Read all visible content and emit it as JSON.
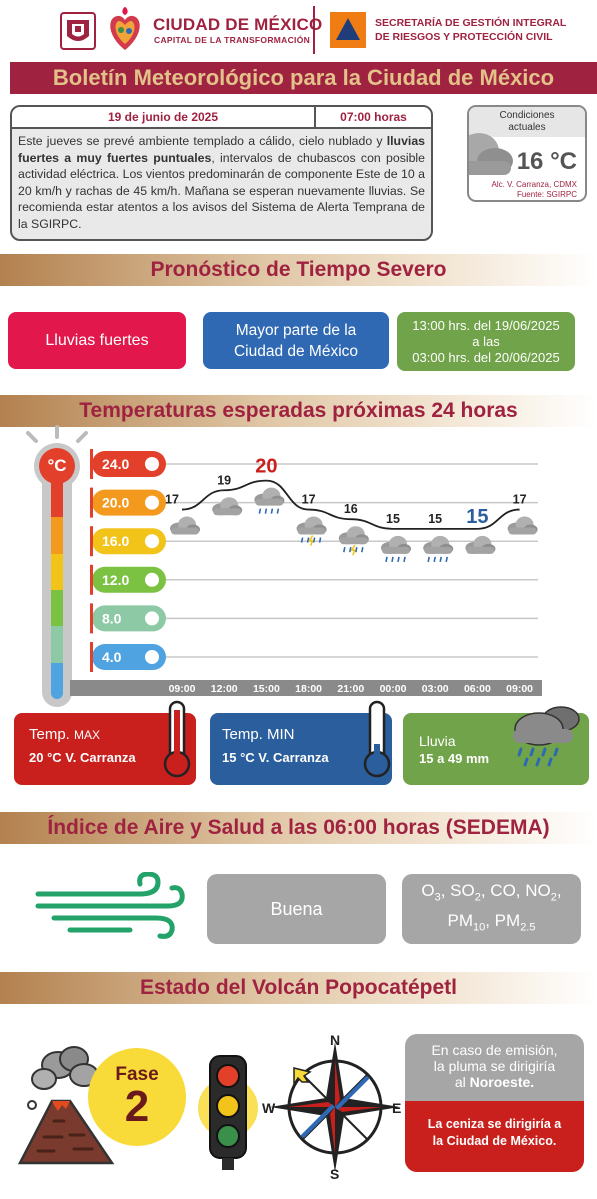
{
  "header": {
    "org_name": "CIUDAD DE MÉXICO",
    "org_sub": "CAPITAL DE LA TRANSFORMACIÓN",
    "secretariat_line1": "SECRETARÍA DE GESTIÓN INTEGRAL",
    "secretariat_line2": "DE RIESGOS Y PROTECCIÓN CIVIL"
  },
  "title": "Boletín Meteorológico para la Ciudad de México",
  "bulletin": {
    "date": "19 de junio de 2025",
    "time": "07:00 horas",
    "text_part1": "Este jueves se prevé ambiente templado a cálido, cielo nublado y ",
    "text_bold": "lluvias fuertes a muy fuertes puntuales",
    "text_part2": ", intervalos de chubascos con posible actividad eléctrica. Los vientos predominarán de componente Este de 10 a 20 km/h y rachas de 45 km/h. Mañana se esperan nuevamente lluvias. Se recomienda estar atentos a los avisos del Sistema de Alerta Temprana de la SGIRPC."
  },
  "current_conditions": {
    "label": "Condiciones actuales",
    "temperature": "16 °C",
    "location": "Alc. V. Carranza, CDMX",
    "source": "Fuente: SGIRPC",
    "icon": "cloud-icon"
  },
  "severe": {
    "title": "Pronóstico de Tiempo Severo",
    "phenomenon": "Lluvias fuertes",
    "area": "Mayor parte de la Ciudad de México",
    "period_line1": "13:00 hrs. del 19/06/2025",
    "period_line2": "a las",
    "period_line3": "03:00 hrs. del 20/06/2025",
    "colors": {
      "phenomenon": "#e2184c",
      "area": "#2f69b3",
      "period": "#70a34a"
    }
  },
  "temperatures": {
    "title": "Temperaturas esperadas próximas 24 horas",
    "unit_symbol": "°C"
  },
  "chart_data": {
    "type": "line",
    "title": "Temperaturas esperadas próximas 24 horas",
    "xlabel": "",
    "ylabel": "",
    "ylim": [
      4,
      24
    ],
    "scale_ticks": [
      "24.0",
      "20.0",
      "16.0",
      "12.0",
      "8.0",
      "4.0"
    ],
    "scale_colors": [
      "#e2402b",
      "#f39a1e",
      "#f2c419",
      "#7cc242",
      "#8cc9a4",
      "#4fa3e0"
    ],
    "x": [
      "09:00",
      "12:00",
      "15:00",
      "18:00",
      "21:00",
      "00:00",
      "03:00",
      "06:00",
      "09:00"
    ],
    "series": [
      {
        "values": [
          17,
          19,
          20,
          17,
          16,
          15,
          15,
          15,
          17
        ]
      }
    ],
    "point_labels": [
      "17",
      "19",
      "20",
      "17",
      "16",
      "15",
      "15",
      "15",
      "17"
    ],
    "highlight": {
      "max_index": 2,
      "min_index": 7,
      "max_color": "#c9201d",
      "min_color": "#2b5e9c"
    },
    "icons": [
      "cloud-icon",
      "cloud-icon",
      "rain-cloud-icon",
      "storm-cloud-icon",
      "storm-cloud-icon",
      "rain-cloud-icon",
      "rain-cloud-icon",
      "cloud-icon",
      "cloud-icon"
    ],
    "grid": true
  },
  "summary": {
    "max_title": "Temp. ",
    "max_title_small": "MAX",
    "max_value": "20 °C  V. Carranza",
    "min_title": "Temp. MIN",
    "min_value": "15 °C  V. Carranza",
    "rain_title": "Lluvia",
    "rain_value": "15 a 49 mm",
    "colors": {
      "max": "#c9201d",
      "min": "#2b5e9c",
      "rain": "#70a34a"
    }
  },
  "air": {
    "title": "Índice de Aire y Salud a las 06:00 horas (SEDEMA)",
    "quality": "Buena",
    "pollutants": "O3, SO2, CO, NO2, PM10, PM2.5",
    "icon": "wind-icon"
  },
  "volcano": {
    "title": "Estado del Volcán Popocatépetl",
    "phase_label": "Fase",
    "phase_number": "2",
    "traffic_light": "amarillo",
    "compass": {
      "n": "N",
      "s": "S",
      "e": "E",
      "w": "W"
    },
    "plume_line1": "En caso de emisión,",
    "plume_line2": "la pluma se dirigiría",
    "plume_line3": "al ",
    "plume_direction": "Noroeste",
    "plume_dot": ".",
    "ash_line1": "La ceniza se dirigiría a",
    "ash_line2": "la Ciudad de México."
  }
}
